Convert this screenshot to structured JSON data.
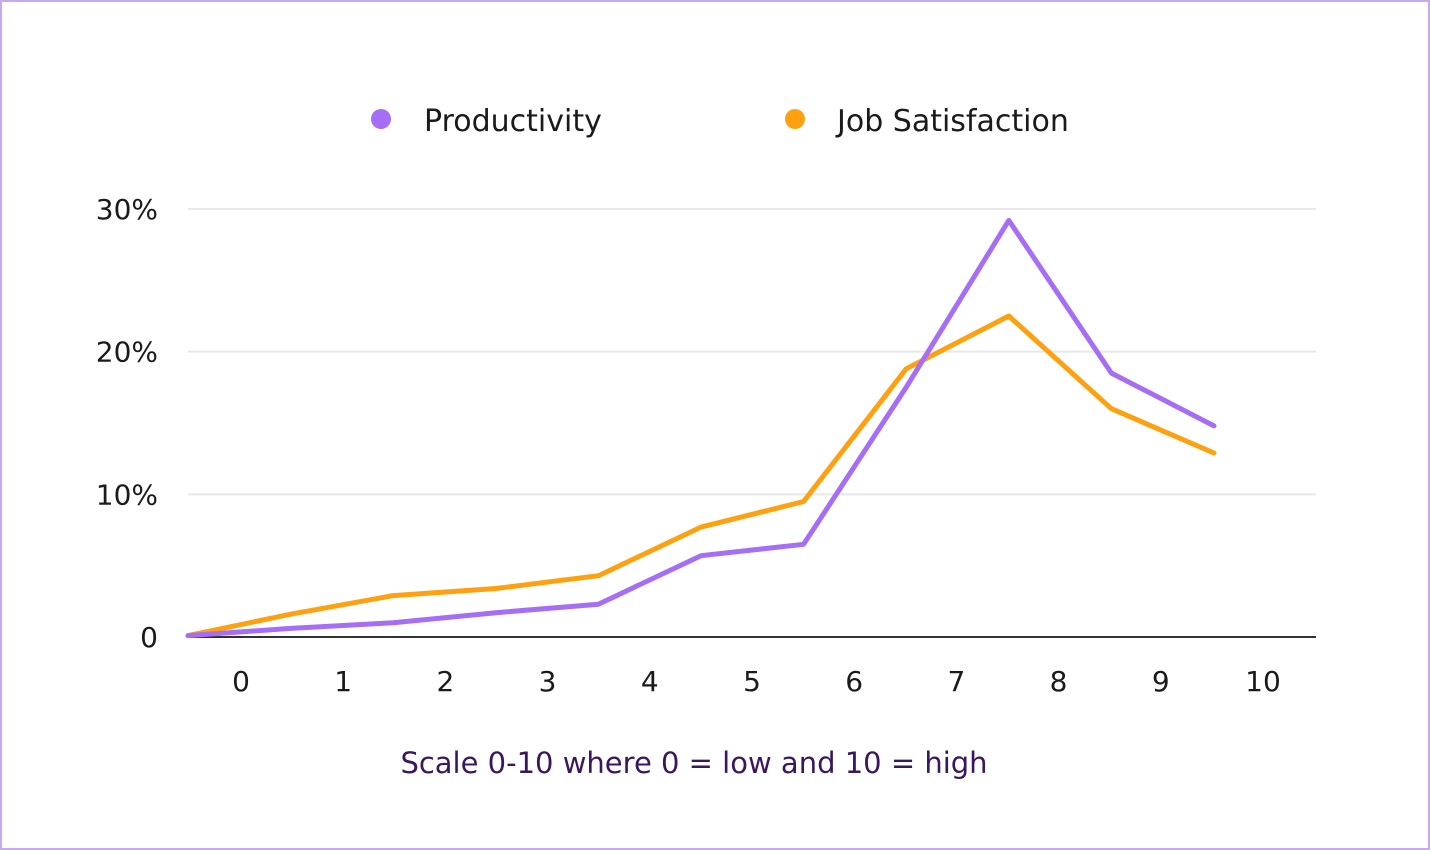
{
  "chart_data": {
    "type": "line",
    "title": "",
    "xlabel": "Scale 0-10 where 0 = low and 10 = high",
    "ylabel": "",
    "categories": [
      "0",
      "1",
      "2",
      "3",
      "4",
      "5",
      "6",
      "7",
      "8",
      "9",
      "10"
    ],
    "y_ticks": [
      "0",
      "10%",
      "20%",
      "30%"
    ],
    "ylim": [
      0,
      30
    ],
    "grid": true,
    "legend_position": "top",
    "series": [
      {
        "name": "Productivity",
        "color": "#a66ef5",
        "values": [
          0.1,
          0.6,
          1.0,
          1.7,
          2.3,
          5.7,
          6.5,
          17.5,
          29.2,
          18.5,
          14.8
        ]
      },
      {
        "name": "Job Satisfaction",
        "color": "#fda110",
        "values": [
          0.1,
          1.6,
          2.9,
          3.4,
          4.3,
          7.7,
          9.5,
          18.8,
          22.5,
          16.0,
          12.9
        ]
      }
    ]
  }
}
